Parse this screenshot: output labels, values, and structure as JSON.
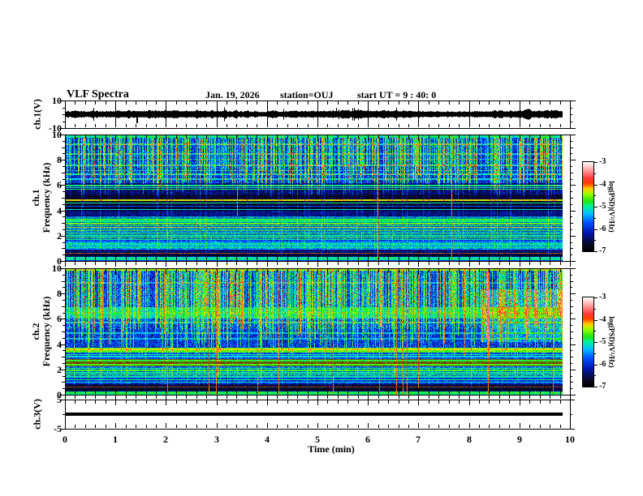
{
  "chart_data": {
    "type": "heatmap",
    "title": "VLF Spectra",
    "date": "Jan. 19, 2026",
    "station": "station=OUJ",
    "start_ut": "start UT =  9 : 40: 0",
    "x_axis": {
      "label": "Time (min)",
      "min": 0,
      "max": 10,
      "major_step_min": 1,
      "minor_step_min": 0.2,
      "tick_labels": [
        "0",
        "1",
        "2",
        "3",
        "4",
        "5",
        "6",
        "7",
        "8",
        "9",
        "10"
      ]
    },
    "data_end_min": 9.85,
    "colormap": {
      "min": -7,
      "max": -3,
      "stop_format": "[fraction, r, g, b] from low (-7, black) to high (-3, white)",
      "stops": [
        [
          0.0,
          0,
          0,
          0
        ],
        [
          0.08,
          8,
          8,
          40
        ],
        [
          0.2,
          0,
          20,
          170
        ],
        [
          0.32,
          0,
          80,
          255
        ],
        [
          0.42,
          0,
          190,
          255
        ],
        [
          0.5,
          0,
          240,
          160
        ],
        [
          0.56,
          30,
          230,
          20
        ],
        [
          0.64,
          150,
          255,
          0
        ],
        [
          0.7,
          255,
          210,
          0
        ],
        [
          0.76,
          255,
          60,
          0
        ],
        [
          0.82,
          255,
          60,
          60
        ],
        [
          0.9,
          255,
          150,
          150
        ],
        [
          1.0,
          255,
          255,
          255
        ]
      ]
    },
    "colorbars": [
      {
        "label": "log(PSD)(V²/Hz)",
        "tick_labels": [
          "-3",
          "-4",
          "-5",
          "-6",
          "-7"
        ]
      },
      {
        "label": "log(PSD)(V²/Hz)",
        "tick_labels": [
          "-3",
          "-4",
          "-5",
          "-6",
          "-7"
        ]
      }
    ],
    "panels": [
      {
        "name": "ch1-waveform",
        "kind": "waveform",
        "ylabel": "ch.1(V)",
        "ymin": -10,
        "ymax": 10,
        "ytick_labels": [
          "10",
          "-10"
        ],
        "ytick_values": [
          10,
          -10
        ],
        "noise_amplitude_v": 2,
        "spike": {
          "t_min": 1.4,
          "v": -6
        },
        "description": "dense black broadband noise trace about 0 V, ends at 9.85 min"
      },
      {
        "name": "ch1-spectrogram",
        "kind": "spectrogram",
        "ylabel_lines": [
          "ch.1",
          "Frequency (kHz)"
        ],
        "ymin": 0,
        "ymax": 10,
        "ytick_labels": [
          "10",
          "8",
          "6",
          "4",
          "2",
          "0"
        ],
        "ytick_values": [
          10,
          8,
          6,
          4,
          2,
          0
        ],
        "band_format": "[f_lo_kHz, f_hi_kHz, base_level, noise, streak_factor, dim]",
        "bands": [
          [
            9.82,
            10.0,
            0.48,
            0.08,
            0.2,
            1
          ],
          [
            6.2,
            9.82,
            0.26,
            0.12,
            1.0,
            1
          ],
          [
            5.3,
            6.2,
            0.14,
            0.08,
            0.5,
            1
          ],
          [
            4.0,
            5.3,
            0.08,
            0.05,
            0.35,
            1
          ],
          [
            3.55,
            4.0,
            0.16,
            0.08,
            0.3,
            1
          ],
          [
            3.05,
            3.55,
            0.4,
            0.1,
            0.25,
            0.85
          ],
          [
            1.55,
            3.05,
            0.3,
            0.1,
            0.3,
            1
          ],
          [
            0.9,
            1.55,
            0.38,
            0.1,
            0.25,
            1
          ],
          [
            0.3,
            0.9,
            0.15,
            0.08,
            0.2,
            1
          ],
          [
            0.05,
            0.3,
            0.47,
            0.07,
            0.15,
            1
          ],
          [
            0.0,
            0.05,
            0.25,
            0.05,
            0.1,
            1
          ]
        ],
        "hline_format": "[freq_kHz, level, dim]",
        "hlines": [
          [
            9.3,
            0.45,
            1
          ],
          [
            8.5,
            0.42,
            1
          ],
          [
            8.1,
            0.4,
            1
          ],
          [
            7.6,
            0.44,
            1
          ],
          [
            7.2,
            0.42,
            1
          ],
          [
            6.9,
            0.46,
            1
          ],
          [
            6.5,
            0.44,
            1
          ],
          [
            6.0,
            0.5,
            1
          ],
          [
            5.85,
            0.45,
            1
          ],
          [
            5.7,
            0.52,
            1
          ],
          [
            4.85,
            0.68,
            1
          ],
          [
            4.6,
            0.5,
            1
          ],
          [
            4.35,
            0.3,
            1
          ],
          [
            4.1,
            0.45,
            1
          ],
          [
            3.3,
            0.55,
            1
          ],
          [
            3.15,
            0.5,
            1
          ],
          [
            2.95,
            0.6,
            1
          ],
          [
            2.8,
            0.52,
            1
          ],
          [
            2.68,
            0.65,
            1
          ],
          [
            2.55,
            0.5,
            1
          ],
          [
            2.42,
            0.58,
            1
          ],
          [
            2.3,
            0.48,
            1
          ],
          [
            2.15,
            0.55,
            1
          ],
          [
            2.0,
            0.5,
            1
          ],
          [
            1.85,
            0.58,
            1
          ],
          [
            1.7,
            0.5,
            1
          ],
          [
            1.35,
            0.5,
            1
          ],
          [
            1.2,
            0.48,
            1
          ],
          [
            1.05,
            0.52,
            1
          ],
          [
            0.6,
            0.74,
            0.6
          ],
          [
            0.45,
            0.06,
            1
          ],
          [
            0.15,
            0.52,
            1
          ]
        ],
        "vstreaks": {
          "density": 0.5,
          "line_prob": 0.05,
          "red_prob": 0.012,
          "amp_min": 0.12,
          "amp_rand": 0.3,
          "depth_min": 5.0,
          "depth_rand": 2.8,
          "full_prob": 0.08
        },
        "boost": null
      },
      {
        "name": "ch2-spectrogram",
        "kind": "spectrogram",
        "ylabel_lines": [
          "ch.2",
          "Frequency (kHz)"
        ],
        "ymin": 0,
        "ymax": 10,
        "ytick_labels": [
          "10",
          "8",
          "6",
          "4",
          "2",
          "0"
        ],
        "ytick_values": [
          10,
          8,
          6,
          4,
          2,
          0
        ],
        "band_format": "[f_lo_kHz, f_hi_kHz, base_level, noise, streak_factor, dim]",
        "bands": [
          [
            9.85,
            10.0,
            0.6,
            0.08,
            0.2,
            1
          ],
          [
            8.4,
            9.85,
            0.28,
            0.13,
            1.0,
            1
          ],
          [
            7.0,
            8.4,
            0.3,
            0.13,
            1.0,
            1
          ],
          [
            6.05,
            7.0,
            0.47,
            0.09,
            0.5,
            1
          ],
          [
            5.2,
            6.05,
            0.3,
            0.12,
            0.9,
            1
          ],
          [
            3.72,
            5.2,
            0.27,
            0.12,
            0.8,
            1
          ],
          [
            3.38,
            3.72,
            0.58,
            0.08,
            0.3,
            1
          ],
          [
            2.85,
            3.38,
            0.3,
            0.1,
            0.3,
            1
          ],
          [
            2.28,
            2.85,
            0.7,
            0.08,
            0.2,
            0.5
          ],
          [
            1.35,
            2.28,
            0.34,
            0.11,
            0.3,
            1
          ],
          [
            0.85,
            1.35,
            0.26,
            0.1,
            0.25,
            1
          ],
          [
            0.28,
            0.85,
            0.1,
            0.07,
            0.2,
            1
          ],
          [
            0.0,
            0.28,
            0.5,
            0.09,
            0.15,
            1
          ]
        ],
        "hline_format": "[freq_kHz, level, dim]",
        "hlines": [
          [
            9.93,
            0.62,
            1
          ],
          [
            8.9,
            0.4,
            1
          ],
          [
            6.5,
            0.52,
            1
          ],
          [
            5.75,
            0.45,
            1
          ],
          [
            4.9,
            0.42,
            1
          ],
          [
            4.45,
            0.4,
            1
          ],
          [
            3.62,
            0.68,
            1
          ],
          [
            3.48,
            0.6,
            1
          ],
          [
            3.2,
            0.5,
            1
          ],
          [
            3.05,
            0.45,
            1
          ],
          [
            2.7,
            0.55,
            1
          ],
          [
            2.4,
            0.58,
            1
          ],
          [
            2.1,
            0.52,
            1
          ],
          [
            1.92,
            0.58,
            1
          ],
          [
            1.75,
            0.5,
            1
          ],
          [
            1.58,
            0.55,
            1
          ],
          [
            1.42,
            0.48,
            1
          ],
          [
            1.2,
            0.5,
            1
          ],
          [
            1.0,
            0.45,
            1
          ],
          [
            0.62,
            0.72,
            0.5
          ],
          [
            0.45,
            0.06,
            1
          ],
          [
            0.14,
            0.55,
            1
          ]
        ],
        "vstreaks": {
          "density": 0.55,
          "line_prob": 0.06,
          "red_prob": 0.04,
          "amp_min": 0.12,
          "amp_rand": 0.32,
          "depth_min": 3.6,
          "depth_rand": 3.4,
          "full_prob": 0.12
        },
        "boost": {
          "t_min": 8.2,
          "f_lo": 4.2,
          "f_hi": 8.4,
          "level": 0.13
        }
      },
      {
        "name": "ch3-waveform",
        "kind": "flatline",
        "ylabel": "ch.3(V)",
        "ymin": -5,
        "ymax": 5,
        "ytick_labels": [
          "5",
          "-5"
        ],
        "ytick_values": [
          5,
          -5
        ],
        "value_v": 0,
        "description": "flat thick black line at 0 V from 0 to 9.85 min"
      }
    ]
  }
}
